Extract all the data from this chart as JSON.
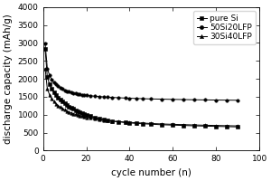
{
  "title": "",
  "xlabel": "cycle number (n)",
  "ylabel": "discharge capacity (mAh/g)",
  "ylim": [
    0,
    4000
  ],
  "xlim": [
    0,
    100
  ],
  "yticks": [
    0,
    500,
    1000,
    1500,
    2000,
    2500,
    3000,
    3500,
    4000
  ],
  "xticks": [
    0,
    20,
    40,
    60,
    80,
    100
  ],
  "legend": [
    "pure Si",
    "50Si20LFP",
    "30Si40LFP"
  ],
  "markers": [
    "s",
    "o",
    "^"
  ],
  "series": {
    "pure_Si": {
      "x": [
        1,
        2,
        3,
        4,
        5,
        6,
        7,
        8,
        9,
        10,
        11,
        12,
        13,
        14,
        15,
        16,
        17,
        18,
        19,
        20,
        22,
        24,
        26,
        28,
        30,
        32,
        35,
        38,
        40,
        43,
        46,
        50,
        55,
        60,
        65,
        70,
        75,
        80,
        85,
        90
      ],
      "y": [
        2820,
        2050,
        1850,
        1720,
        1620,
        1540,
        1470,
        1410,
        1360,
        1310,
        1270,
        1230,
        1190,
        1160,
        1130,
        1100,
        1075,
        1050,
        1025,
        1000,
        960,
        920,
        885,
        860,
        840,
        820,
        800,
        780,
        770,
        758,
        748,
        735,
        720,
        710,
        700,
        690,
        682,
        674,
        668,
        660
      ]
    },
    "50Si20LFP": {
      "x": [
        1,
        2,
        3,
        4,
        5,
        6,
        7,
        8,
        9,
        10,
        11,
        12,
        13,
        14,
        15,
        16,
        17,
        18,
        19,
        20,
        22,
        24,
        26,
        28,
        30,
        32,
        35,
        38,
        40,
        43,
        46,
        50,
        55,
        60,
        65,
        70,
        75,
        80,
        85,
        90
      ],
      "y": [
        2980,
        2290,
        2100,
        1980,
        1900,
        1840,
        1790,
        1750,
        1715,
        1685,
        1660,
        1640,
        1620,
        1605,
        1590,
        1578,
        1567,
        1557,
        1548,
        1540,
        1527,
        1515,
        1505,
        1496,
        1488,
        1481,
        1472,
        1464,
        1459,
        1452,
        1446,
        1439,
        1432,
        1426,
        1421,
        1416,
        1412,
        1408,
        1405,
        1402
      ]
    },
    "30Si40LFP": {
      "x": [
        1,
        2,
        3,
        4,
        5,
        6,
        7,
        8,
        9,
        10,
        11,
        12,
        13,
        14,
        15,
        16,
        17,
        18,
        19,
        20,
        22,
        24,
        26,
        28,
        30,
        32,
        35,
        38,
        40,
        43,
        46,
        50,
        55,
        60,
        65,
        70,
        75,
        80,
        85,
        90
      ],
      "y": [
        2290,
        1720,
        1560,
        1450,
        1370,
        1305,
        1255,
        1210,
        1170,
        1135,
        1105,
        1078,
        1053,
        1030,
        1010,
        990,
        973,
        957,
        942,
        928,
        905,
        884,
        866,
        850,
        836,
        823,
        808,
        795,
        787,
        776,
        767,
        755,
        742,
        732,
        723,
        714,
        707,
        700,
        694,
        688
      ]
    }
  }
}
